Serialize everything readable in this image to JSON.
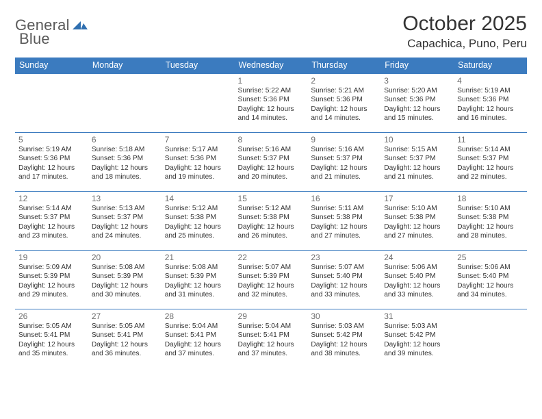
{
  "logo": {
    "text_general": "General",
    "text_blue": "Blue"
  },
  "header": {
    "month_title": "October 2025",
    "location": "Capachica, Puno, Peru"
  },
  "colors": {
    "header_bg": "#3b7bbf",
    "header_text": "#ffffff",
    "cell_border": "#3b7bbf",
    "body_text": "#333333",
    "daynum_text": "#6d6d6d",
    "background": "#ffffff"
  },
  "calendar": {
    "day_headers": [
      "Sunday",
      "Monday",
      "Tuesday",
      "Wednesday",
      "Thursday",
      "Friday",
      "Saturday"
    ],
    "weeks": [
      [
        {
          "n": "",
          "sr": "",
          "ss": "",
          "dl": ""
        },
        {
          "n": "",
          "sr": "",
          "ss": "",
          "dl": ""
        },
        {
          "n": "",
          "sr": "",
          "ss": "",
          "dl": ""
        },
        {
          "n": "1",
          "sr": "5:22 AM",
          "ss": "5:36 PM",
          "dl": "12 hours and 14 minutes."
        },
        {
          "n": "2",
          "sr": "5:21 AM",
          "ss": "5:36 PM",
          "dl": "12 hours and 14 minutes."
        },
        {
          "n": "3",
          "sr": "5:20 AM",
          "ss": "5:36 PM",
          "dl": "12 hours and 15 minutes."
        },
        {
          "n": "4",
          "sr": "5:19 AM",
          "ss": "5:36 PM",
          "dl": "12 hours and 16 minutes."
        }
      ],
      [
        {
          "n": "5",
          "sr": "5:19 AM",
          "ss": "5:36 PM",
          "dl": "12 hours and 17 minutes."
        },
        {
          "n": "6",
          "sr": "5:18 AM",
          "ss": "5:36 PM",
          "dl": "12 hours and 18 minutes."
        },
        {
          "n": "7",
          "sr": "5:17 AM",
          "ss": "5:36 PM",
          "dl": "12 hours and 19 minutes."
        },
        {
          "n": "8",
          "sr": "5:16 AM",
          "ss": "5:37 PM",
          "dl": "12 hours and 20 minutes."
        },
        {
          "n": "9",
          "sr": "5:16 AM",
          "ss": "5:37 PM",
          "dl": "12 hours and 21 minutes."
        },
        {
          "n": "10",
          "sr": "5:15 AM",
          "ss": "5:37 PM",
          "dl": "12 hours and 21 minutes."
        },
        {
          "n": "11",
          "sr": "5:14 AM",
          "ss": "5:37 PM",
          "dl": "12 hours and 22 minutes."
        }
      ],
      [
        {
          "n": "12",
          "sr": "5:14 AM",
          "ss": "5:37 PM",
          "dl": "12 hours and 23 minutes."
        },
        {
          "n": "13",
          "sr": "5:13 AM",
          "ss": "5:37 PM",
          "dl": "12 hours and 24 minutes."
        },
        {
          "n": "14",
          "sr": "5:12 AM",
          "ss": "5:38 PM",
          "dl": "12 hours and 25 minutes."
        },
        {
          "n": "15",
          "sr": "5:12 AM",
          "ss": "5:38 PM",
          "dl": "12 hours and 26 minutes."
        },
        {
          "n": "16",
          "sr": "5:11 AM",
          "ss": "5:38 PM",
          "dl": "12 hours and 27 minutes."
        },
        {
          "n": "17",
          "sr": "5:10 AM",
          "ss": "5:38 PM",
          "dl": "12 hours and 27 minutes."
        },
        {
          "n": "18",
          "sr": "5:10 AM",
          "ss": "5:38 PM",
          "dl": "12 hours and 28 minutes."
        }
      ],
      [
        {
          "n": "19",
          "sr": "5:09 AM",
          "ss": "5:39 PM",
          "dl": "12 hours and 29 minutes."
        },
        {
          "n": "20",
          "sr": "5:08 AM",
          "ss": "5:39 PM",
          "dl": "12 hours and 30 minutes."
        },
        {
          "n": "21",
          "sr": "5:08 AM",
          "ss": "5:39 PM",
          "dl": "12 hours and 31 minutes."
        },
        {
          "n": "22",
          "sr": "5:07 AM",
          "ss": "5:39 PM",
          "dl": "12 hours and 32 minutes."
        },
        {
          "n": "23",
          "sr": "5:07 AM",
          "ss": "5:40 PM",
          "dl": "12 hours and 33 minutes."
        },
        {
          "n": "24",
          "sr": "5:06 AM",
          "ss": "5:40 PM",
          "dl": "12 hours and 33 minutes."
        },
        {
          "n": "25",
          "sr": "5:06 AM",
          "ss": "5:40 PM",
          "dl": "12 hours and 34 minutes."
        }
      ],
      [
        {
          "n": "26",
          "sr": "5:05 AM",
          "ss": "5:41 PM",
          "dl": "12 hours and 35 minutes."
        },
        {
          "n": "27",
          "sr": "5:05 AM",
          "ss": "5:41 PM",
          "dl": "12 hours and 36 minutes."
        },
        {
          "n": "28",
          "sr": "5:04 AM",
          "ss": "5:41 PM",
          "dl": "12 hours and 37 minutes."
        },
        {
          "n": "29",
          "sr": "5:04 AM",
          "ss": "5:41 PM",
          "dl": "12 hours and 37 minutes."
        },
        {
          "n": "30",
          "sr": "5:03 AM",
          "ss": "5:42 PM",
          "dl": "12 hours and 38 minutes."
        },
        {
          "n": "31",
          "sr": "5:03 AM",
          "ss": "5:42 PM",
          "dl": "12 hours and 39 minutes."
        },
        {
          "n": "",
          "sr": "",
          "ss": "",
          "dl": ""
        }
      ]
    ],
    "labels": {
      "sunrise": "Sunrise:",
      "sunset": "Sunset:",
      "daylight": "Daylight:"
    }
  }
}
